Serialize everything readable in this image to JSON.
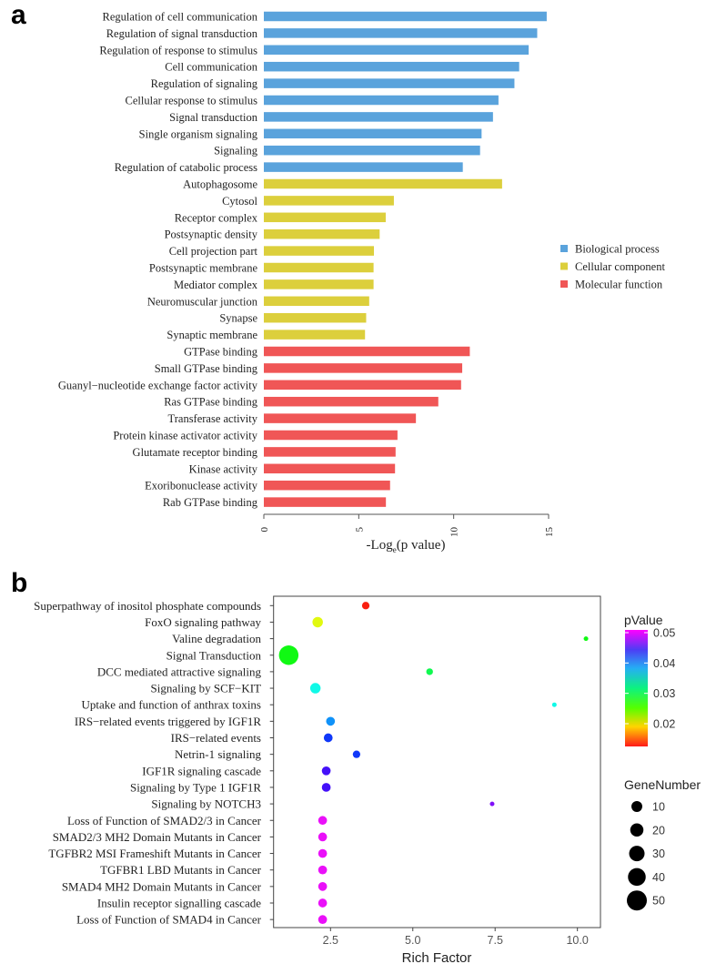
{
  "chart_data": [
    {
      "type": "bar",
      "panel_label": "a",
      "orientation": "horizontal",
      "xlabel": "-Log",
      "xlabel_sub": "e",
      "xlabel_rest": "(p value)",
      "xlim": [
        0,
        15
      ],
      "xticks": [
        0,
        5,
        10,
        15
      ],
      "legend": {
        "position": "right",
        "entries": [
          {
            "name": "Biological process",
            "color": "#5aa3dc"
          },
          {
            "name": "Cellular component",
            "color": "#dccf3c"
          },
          {
            "name": "Molecular function",
            "color": "#f05656"
          }
        ]
      },
      "bars": [
        {
          "label": "Regulation of cell communication",
          "value": 14.9,
          "category": 0
        },
        {
          "label": "Regulation of signal transduction",
          "value": 14.4,
          "category": 0
        },
        {
          "label": "Regulation of response to stimulus",
          "value": 13.95,
          "category": 0
        },
        {
          "label": "Cell communication",
          "value": 13.45,
          "category": 0
        },
        {
          "label": "Regulation of signaling",
          "value": 13.2,
          "category": 0
        },
        {
          "label": "Cellular response to stimulus",
          "value": 12.36,
          "category": 0
        },
        {
          "label": "Signal transduction",
          "value": 12.07,
          "category": 0
        },
        {
          "label": "Single organism signaling",
          "value": 11.47,
          "category": 0
        },
        {
          "label": "Signaling",
          "value": 11.39,
          "category": 0
        },
        {
          "label": "Regulation of catabolic process",
          "value": 10.48,
          "category": 0
        },
        {
          "label": "Autophagosome",
          "value": 12.55,
          "category": 1
        },
        {
          "label": "Cytosol",
          "value": 6.85,
          "category": 1
        },
        {
          "label": "Receptor complex",
          "value": 6.42,
          "category": 1
        },
        {
          "label": "Postsynaptic density",
          "value": 6.1,
          "category": 1
        },
        {
          "label": "Cell projection part",
          "value": 5.8,
          "category": 1
        },
        {
          "label": "Postsynaptic membrane",
          "value": 5.78,
          "category": 1
        },
        {
          "label": "Mediator complex",
          "value": 5.78,
          "category": 1
        },
        {
          "label": "Neuromuscular junction",
          "value": 5.55,
          "category": 1
        },
        {
          "label": "Synapse",
          "value": 5.39,
          "category": 1
        },
        {
          "label": "Synaptic membrane",
          "value": 5.33,
          "category": 1
        },
        {
          "label": "GTPase binding",
          "value": 10.85,
          "category": 2
        },
        {
          "label": "Small GTPase binding",
          "value": 10.45,
          "category": 2
        },
        {
          "label": "Guanyl−nucleotide exchange factor activity",
          "value": 10.39,
          "category": 2
        },
        {
          "label": "Ras GTPase binding",
          "value": 9.19,
          "category": 2
        },
        {
          "label": "Transferase activity",
          "value": 8.01,
          "category": 2
        },
        {
          "label": "Protein kinase activator activity",
          "value": 7.04,
          "category": 2
        },
        {
          "label": "Glutamate receptor binding",
          "value": 6.94,
          "category": 2
        },
        {
          "label": "Kinase activity",
          "value": 6.91,
          "category": 2
        },
        {
          "label": "Exoribonuclease activity",
          "value": 6.65,
          "category": 2
        },
        {
          "label": "Rab GTPase binding",
          "value": 6.43,
          "category": 2
        }
      ]
    },
    {
      "type": "scatter",
      "panel_label": "b",
      "xlabel": "Rich Factor",
      "xlim": [
        0.77,
        10.7
      ],
      "xticks": [
        "2.5",
        "5.0",
        "7.5",
        "10.0"
      ],
      "grid": false,
      "color_legend": {
        "title": "pValue",
        "ticks": [
          "0.05",
          "0.04",
          "0.03",
          "0.02"
        ],
        "range": [
          0.0125,
          0.051
        ]
      },
      "size_legend": {
        "title": "GeneNumber",
        "values": [
          10,
          20,
          30,
          40,
          50
        ]
      },
      "points": [
        {
          "label": "Superpathway of inositol phosphate compounds",
          "rich_factor": 3.57,
          "pvalue": 0.013,
          "gene_number": 4
        },
        {
          "label": "FoxO signaling pathway",
          "rich_factor": 2.11,
          "pvalue": 0.021,
          "gene_number": 9
        },
        {
          "label": "Valine degradation",
          "rich_factor": 10.26,
          "pvalue": 0.028,
          "gene_number": 1
        },
        {
          "label": "Signal Transduction",
          "rich_factor": 1.23,
          "pvalue": 0.028,
          "gene_number": 37
        },
        {
          "label": "DCC mediated attractive signaling",
          "rich_factor": 5.51,
          "pvalue": 0.03,
          "gene_number": 3
        },
        {
          "label": "Signaling by SCF−KIT",
          "rich_factor": 2.04,
          "pvalue": 0.035,
          "gene_number": 9
        },
        {
          "label": "Uptake and function of anthrax toxins",
          "rich_factor": 9.3,
          "pvalue": 0.035,
          "gene_number": 1
        },
        {
          "label": "IRS−related events triggered by IGF1R",
          "rich_factor": 2.5,
          "pvalue": 0.039,
          "gene_number": 6
        },
        {
          "label": "IRS−related events",
          "rich_factor": 2.43,
          "pvalue": 0.042,
          "gene_number": 6
        },
        {
          "label": "Netrin-1 signaling",
          "rich_factor": 3.29,
          "pvalue": 0.042,
          "gene_number": 4
        },
        {
          "label": "IGF1R signaling cascade",
          "rich_factor": 2.37,
          "pvalue": 0.045,
          "gene_number": 6
        },
        {
          "label": "Signaling by Type 1 IGF1R",
          "rich_factor": 2.37,
          "pvalue": 0.045,
          "gene_number": 6
        },
        {
          "label": "Signaling by NOTCH3",
          "rich_factor": 7.41,
          "pvalue": 0.047,
          "gene_number": 1
        },
        {
          "label": "Loss of Function of SMAD2/3 in Cancer",
          "rich_factor": 2.26,
          "pvalue": 0.0505,
          "gene_number": 6
        },
        {
          "label": "SMAD2/3 MH2 Domain Mutants in Cancer",
          "rich_factor": 2.26,
          "pvalue": 0.0505,
          "gene_number": 6
        },
        {
          "label": "TGFBR2 MSI Frameshift Mutants in Cancer",
          "rich_factor": 2.26,
          "pvalue": 0.0505,
          "gene_number": 6
        },
        {
          "label": "TGFBR1 LBD Mutants in Cancer",
          "rich_factor": 2.26,
          "pvalue": 0.0505,
          "gene_number": 6
        },
        {
          "label": "SMAD4 MH2 Domain Mutants in Cancer",
          "rich_factor": 2.26,
          "pvalue": 0.0505,
          "gene_number": 6
        },
        {
          "label": "Insulin receptor signalling cascade",
          "rich_factor": 2.26,
          "pvalue": 0.0505,
          "gene_number": 6
        },
        {
          "label": "Loss of Function of SMAD4 in Cancer",
          "rich_factor": 2.26,
          "pvalue": 0.0505,
          "gene_number": 6
        }
      ]
    }
  ]
}
